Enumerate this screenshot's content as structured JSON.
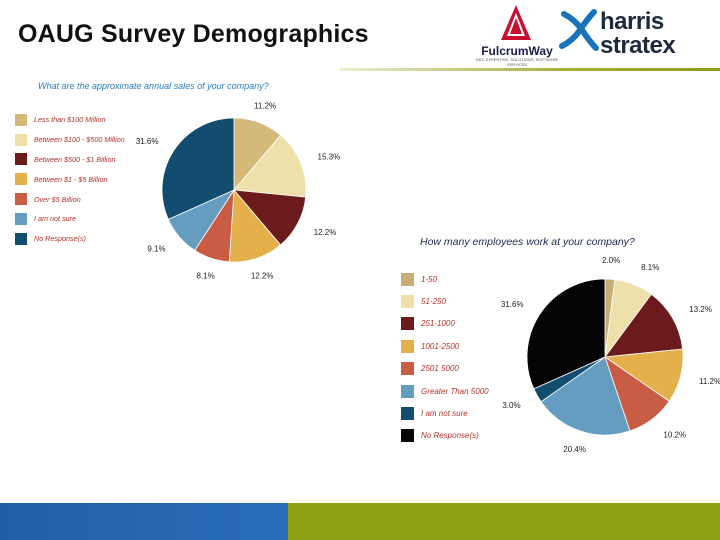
{
  "slide": {
    "title": "OAUG Survey Demographics"
  },
  "logos": {
    "fulcrumway": {
      "name": "FulcrumWay",
      "tagline": "GRC EXPERTISE, SOLUTIONS, SOFTWARE SERVICES",
      "icon": "fulcrumway-logo-icon"
    },
    "harris_stratex": {
      "word1": "harris",
      "word2": "stratex",
      "icon": "harris-stratex-logo-icon"
    }
  },
  "colors": {
    "accent_line": "#a7ad3a",
    "footer_blue": "#1f5fa8",
    "footer_green": "#8ca011",
    "chart1_question": "#2a7fc0",
    "chart2_question": "#1c2a50",
    "legend_text": "#b3342a"
  },
  "chart_data": [
    {
      "type": "pie",
      "title": "What are the approximate annual sales of your company?",
      "categories": [
        "Less than $100 Million",
        "Between $100 - $500 Million",
        "Between $500 - $1 Billion",
        "Between $1 - $5 Billion",
        "Over $5 Billion",
        "I am not sure",
        "No Response(s)"
      ],
      "values": [
        11.2,
        15.3,
        12.2,
        12.2,
        8.1,
        9.1,
        31.6
      ],
      "labels": [
        "11.2%",
        "15.3%",
        "12.2%",
        "12.2%",
        "8.1%",
        "9.1%",
        "31.6%"
      ],
      "colors": [
        "#d4b97a",
        "#ede0ab",
        "#6b1b1b",
        "#e3b04b",
        "#c85c44",
        "#659dc0",
        "#124c6e"
      ],
      "start_angle_deg": 0,
      "direction": "clockwise",
      "legend_position": "left"
    },
    {
      "type": "pie",
      "title": "How many employees work at your company?",
      "categories": [
        "1-50",
        "51-250",
        "251-1000",
        "1001-2500",
        "2501 5000",
        "Greater Than 5000",
        "I am not sure",
        "No Response(s)"
      ],
      "values": [
        2.0,
        8.1,
        13.2,
        11.2,
        10.2,
        20.4,
        3.0,
        31.6
      ],
      "labels": [
        "2.0%",
        "8.1%",
        "13.2%",
        "11.2%",
        "10.2%",
        "20.4%",
        "3.0%",
        "31.6%"
      ],
      "colors": [
        "#c9ad77",
        "#ede0ab",
        "#6b1b1b",
        "#e3b04b",
        "#c85c44",
        "#659dc0",
        "#124c6e",
        "#050505"
      ],
      "start_angle_deg": 0,
      "direction": "clockwise",
      "legend_position": "left"
    }
  ]
}
